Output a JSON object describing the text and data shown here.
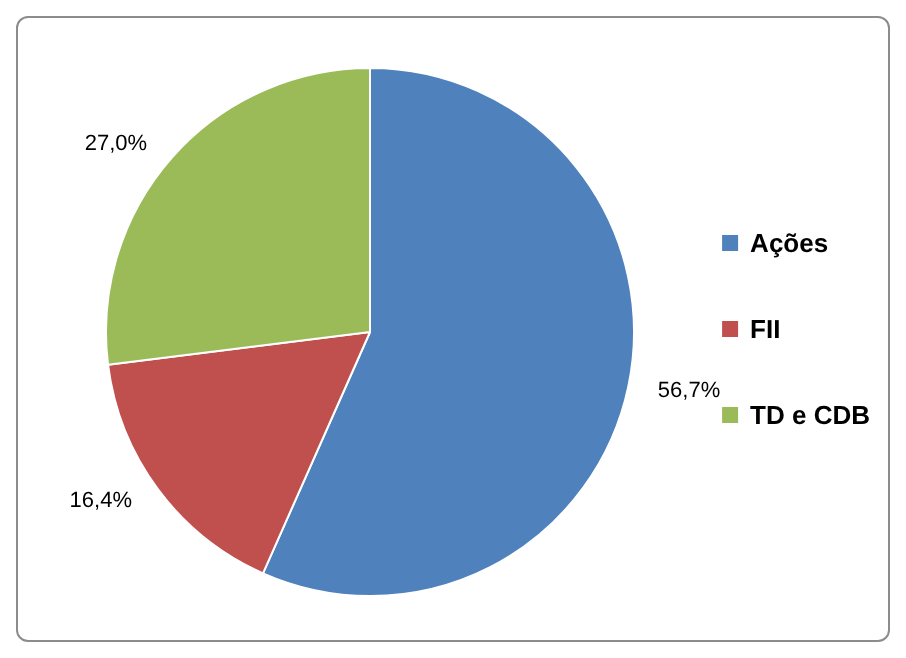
{
  "chart_data": {
    "type": "pie",
    "categories": [
      "Ações",
      "FII",
      "TD e CDB"
    ],
    "values": [
      56.7,
      16.4,
      27.0
    ],
    "colors": [
      "#4f81bd",
      "#c0504d",
      "#9bbb59"
    ],
    "value_labels": [
      "56,7%",
      "16,4%",
      "27,0%"
    ],
    "legend": "right"
  }
}
